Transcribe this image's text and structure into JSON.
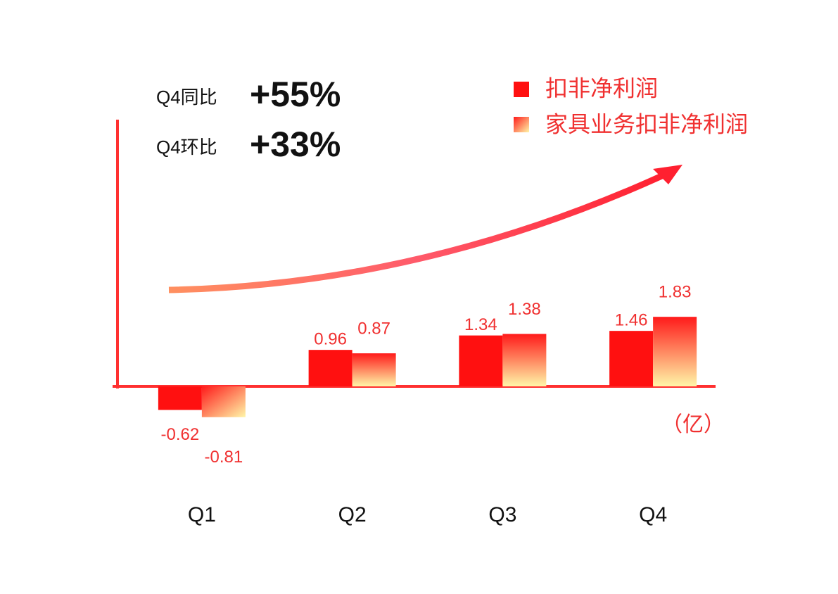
{
  "chart_data": {
    "type": "bar",
    "categories": [
      "Q1",
      "Q2",
      "Q3",
      "Q4"
    ],
    "series": [
      {
        "name": "扣非净利润",
        "color": "#ff1010",
        "values": [
          -0.62,
          0.96,
          1.34,
          1.46
        ]
      },
      {
        "name": "家具业务扣非净利润",
        "color": "#ff1a1a",
        "values": [
          -0.81,
          0.87,
          1.38,
          1.83
        ]
      }
    ],
    "ylim": [
      -2,
      7
    ],
    "unit": "（亿）",
    "annotations": [
      {
        "label": "Q4同比",
        "value": "+55%"
      },
      {
        "label": "Q4环比",
        "value": "+33%"
      }
    ],
    "legend": "top-right"
  }
}
